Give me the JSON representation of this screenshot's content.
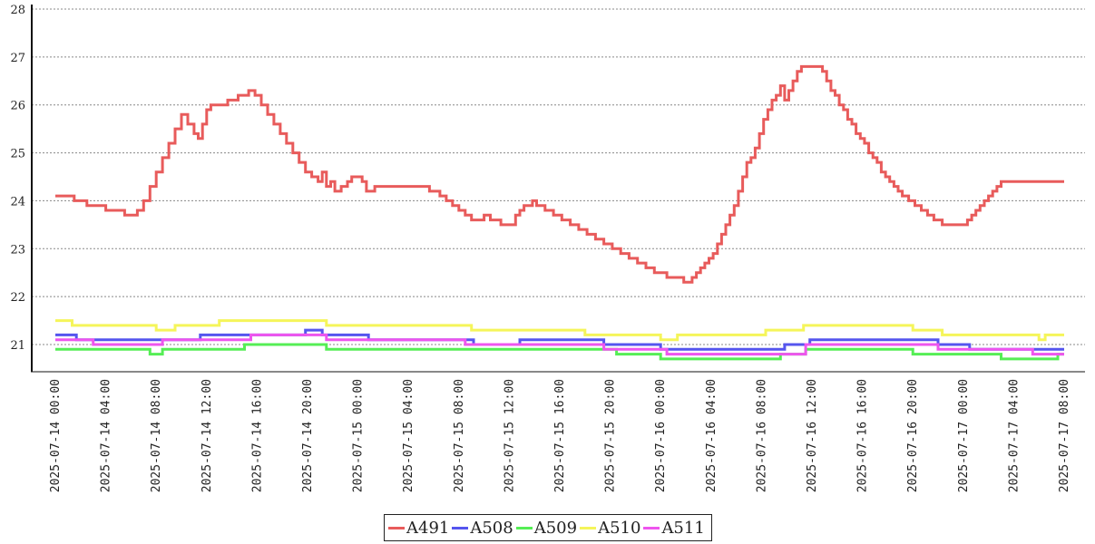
{
  "chart_data": {
    "type": "line",
    "step": true,
    "grid": "horizontal-dashed",
    "legend_position": "bottom-center",
    "ylim": [
      21,
      28
    ],
    "yticks": [
      21,
      22,
      23,
      24,
      25,
      26,
      27,
      28
    ],
    "x_range": [
      "2025-07-14 00:00",
      "2025-07-17 08:00"
    ],
    "x_tick_labels": [
      "2025-07-14  00:00",
      "2025-07-14  04:00",
      "2025-07-14  08:00",
      "2025-07-14  12:00",
      "2025-07-14  16:00",
      "2025-07-14  20:00",
      "2025-07-15  00:00",
      "2025-07-15  04:00",
      "2025-07-15  08:00",
      "2025-07-15  12:00",
      "2025-07-15  16:00",
      "2025-07-15  20:00",
      "2025-07-16  00:00",
      "2025-07-16  04:00",
      "2025-07-16  08:00",
      "2025-07-16  12:00",
      "2025-07-16  16:00",
      "2025-07-16  20:00",
      "2025-07-17  00:00",
      "2025-07-17  04:00",
      "2025-07-17  08:00"
    ],
    "series": [
      {
        "name": "A491",
        "color": "#e85b5b",
        "points": [
          [
            "2025-07-14 00:00",
            24.1
          ],
          [
            "2025-07-14 01:30",
            24.0
          ],
          [
            "2025-07-14 02:30",
            23.9
          ],
          [
            "2025-07-14 04:00",
            23.8
          ],
          [
            "2025-07-14 05:30",
            23.7
          ],
          [
            "2025-07-14 06:30",
            23.8
          ],
          [
            "2025-07-14 07:00",
            24.0
          ],
          [
            "2025-07-14 07:30",
            24.3
          ],
          [
            "2025-07-14 08:00",
            24.6
          ],
          [
            "2025-07-14 08:30",
            24.9
          ],
          [
            "2025-07-14 09:00",
            25.2
          ],
          [
            "2025-07-14 09:30",
            25.5
          ],
          [
            "2025-07-14 10:00",
            25.8
          ],
          [
            "2025-07-14 10:30",
            25.6
          ],
          [
            "2025-07-14 11:00",
            25.4
          ],
          [
            "2025-07-14 11:20",
            25.3
          ],
          [
            "2025-07-14 11:40",
            25.6
          ],
          [
            "2025-07-14 12:00",
            25.9
          ],
          [
            "2025-07-14 12:20",
            26.0
          ],
          [
            "2025-07-14 13:40",
            26.1
          ],
          [
            "2025-07-14 14:30",
            26.2
          ],
          [
            "2025-07-14 15:20",
            26.3
          ],
          [
            "2025-07-14 15:50",
            26.2
          ],
          [
            "2025-07-14 16:20",
            26.0
          ],
          [
            "2025-07-14 16:50",
            25.8
          ],
          [
            "2025-07-14 17:20",
            25.6
          ],
          [
            "2025-07-14 17:50",
            25.4
          ],
          [
            "2025-07-14 18:20",
            25.2
          ],
          [
            "2025-07-14 18:50",
            25.0
          ],
          [
            "2025-07-14 19:20",
            24.8
          ],
          [
            "2025-07-14 19:50",
            24.6
          ],
          [
            "2025-07-14 20:20",
            24.5
          ],
          [
            "2025-07-14 20:50",
            24.4
          ],
          [
            "2025-07-14 21:10",
            24.6
          ],
          [
            "2025-07-14 21:30",
            24.3
          ],
          [
            "2025-07-14 21:50",
            24.4
          ],
          [
            "2025-07-14 22:10",
            24.2
          ],
          [
            "2025-07-14 22:40",
            24.3
          ],
          [
            "2025-07-14 23:10",
            24.4
          ],
          [
            "2025-07-14 23:30",
            24.5
          ],
          [
            "2025-07-15 00:20",
            24.4
          ],
          [
            "2025-07-15 00:40",
            24.2
          ],
          [
            "2025-07-15 01:20",
            24.3
          ],
          [
            "2025-07-15 05:40",
            24.2
          ],
          [
            "2025-07-15 06:30",
            24.1
          ],
          [
            "2025-07-15 07:00",
            24.0
          ],
          [
            "2025-07-15 07:30",
            23.9
          ],
          [
            "2025-07-15 08:00",
            23.8
          ],
          [
            "2025-07-15 08:30",
            23.7
          ],
          [
            "2025-07-15 09:00",
            23.6
          ],
          [
            "2025-07-15 10:00",
            23.7
          ],
          [
            "2025-07-15 10:30",
            23.6
          ],
          [
            "2025-07-15 11:20",
            23.5
          ],
          [
            "2025-07-15 12:30",
            23.7
          ],
          [
            "2025-07-15 12:50",
            23.8
          ],
          [
            "2025-07-15 13:10",
            23.9
          ],
          [
            "2025-07-15 13:50",
            24.0
          ],
          [
            "2025-07-15 14:10",
            23.9
          ],
          [
            "2025-07-15 14:50",
            23.8
          ],
          [
            "2025-07-15 15:30",
            23.7
          ],
          [
            "2025-07-15 16:10",
            23.6
          ],
          [
            "2025-07-15 16:50",
            23.5
          ],
          [
            "2025-07-15 17:30",
            23.4
          ],
          [
            "2025-07-15 18:10",
            23.3
          ],
          [
            "2025-07-15 18:50",
            23.2
          ],
          [
            "2025-07-15 19:30",
            23.1
          ],
          [
            "2025-07-15 20:10",
            23.0
          ],
          [
            "2025-07-15 20:50",
            22.9
          ],
          [
            "2025-07-15 21:30",
            22.8
          ],
          [
            "2025-07-15 22:10",
            22.7
          ],
          [
            "2025-07-15 22:50",
            22.6
          ],
          [
            "2025-07-15 23:30",
            22.5
          ],
          [
            "2025-07-16 00:30",
            22.4
          ],
          [
            "2025-07-16 01:50",
            22.3
          ],
          [
            "2025-07-16 02:30",
            22.4
          ],
          [
            "2025-07-16 02:50",
            22.5
          ],
          [
            "2025-07-16 03:10",
            22.6
          ],
          [
            "2025-07-16 03:30",
            22.7
          ],
          [
            "2025-07-16 03:50",
            22.8
          ],
          [
            "2025-07-16 04:10",
            22.9
          ],
          [
            "2025-07-16 04:30",
            23.1
          ],
          [
            "2025-07-16 04:50",
            23.3
          ],
          [
            "2025-07-16 05:10",
            23.5
          ],
          [
            "2025-07-16 05:30",
            23.7
          ],
          [
            "2025-07-16 05:50",
            23.9
          ],
          [
            "2025-07-16 06:10",
            24.2
          ],
          [
            "2025-07-16 06:30",
            24.5
          ],
          [
            "2025-07-16 06:50",
            24.8
          ],
          [
            "2025-07-16 07:10",
            24.9
          ],
          [
            "2025-07-16 07:30",
            25.1
          ],
          [
            "2025-07-16 07:50",
            25.4
          ],
          [
            "2025-07-16 08:10",
            25.7
          ],
          [
            "2025-07-16 08:30",
            25.9
          ],
          [
            "2025-07-16 08:50",
            26.1
          ],
          [
            "2025-07-16 09:10",
            26.2
          ],
          [
            "2025-07-16 09:30",
            26.4
          ],
          [
            "2025-07-16 09:50",
            26.1
          ],
          [
            "2025-07-16 10:10",
            26.3
          ],
          [
            "2025-07-16 10:30",
            26.5
          ],
          [
            "2025-07-16 10:50",
            26.7
          ],
          [
            "2025-07-16 11:10",
            26.8
          ],
          [
            "2025-07-16 12:50",
            26.7
          ],
          [
            "2025-07-16 13:10",
            26.5
          ],
          [
            "2025-07-16 13:30",
            26.3
          ],
          [
            "2025-07-16 13:50",
            26.2
          ],
          [
            "2025-07-16 14:10",
            26.0
          ],
          [
            "2025-07-16 14:30",
            25.9
          ],
          [
            "2025-07-16 14:50",
            25.7
          ],
          [
            "2025-07-16 15:10",
            25.6
          ],
          [
            "2025-07-16 15:30",
            25.4
          ],
          [
            "2025-07-16 15:50",
            25.3
          ],
          [
            "2025-07-16 16:10",
            25.2
          ],
          [
            "2025-07-16 16:30",
            25.0
          ],
          [
            "2025-07-16 16:50",
            24.9
          ],
          [
            "2025-07-16 17:10",
            24.8
          ],
          [
            "2025-07-16 17:30",
            24.6
          ],
          [
            "2025-07-16 17:50",
            24.5
          ],
          [
            "2025-07-16 18:10",
            24.4
          ],
          [
            "2025-07-16 18:30",
            24.3
          ],
          [
            "2025-07-16 18:50",
            24.2
          ],
          [
            "2025-07-16 19:10",
            24.1
          ],
          [
            "2025-07-16 19:40",
            24.0
          ],
          [
            "2025-07-16 20:10",
            23.9
          ],
          [
            "2025-07-16 20:40",
            23.8
          ],
          [
            "2025-07-16 21:10",
            23.7
          ],
          [
            "2025-07-16 21:40",
            23.6
          ],
          [
            "2025-07-16 22:20",
            23.5
          ],
          [
            "2025-07-17 00:20",
            23.6
          ],
          [
            "2025-07-17 00:40",
            23.7
          ],
          [
            "2025-07-17 01:00",
            23.8
          ],
          [
            "2025-07-17 01:20",
            23.9
          ],
          [
            "2025-07-17 01:40",
            24.0
          ],
          [
            "2025-07-17 02:00",
            24.1
          ],
          [
            "2025-07-17 02:20",
            24.2
          ],
          [
            "2025-07-17 02:40",
            24.3
          ],
          [
            "2025-07-17 03:00",
            24.4
          ],
          [
            "2025-07-17 08:00",
            24.4
          ]
        ]
      },
      {
        "name": "A508",
        "color": "#5555ee",
        "points": [
          [
            "2025-07-14 00:00",
            21.2
          ],
          [
            "2025-07-14 01:40",
            21.1
          ],
          [
            "2025-07-14 11:30",
            21.2
          ],
          [
            "2025-07-14 19:50",
            21.3
          ],
          [
            "2025-07-14 21:10",
            21.2
          ],
          [
            "2025-07-15 00:50",
            21.1
          ],
          [
            "2025-07-15 09:10",
            21.0
          ],
          [
            "2025-07-15 12:50",
            21.1
          ],
          [
            "2025-07-15 19:30",
            21.0
          ],
          [
            "2025-07-16 00:00",
            20.9
          ],
          [
            "2025-07-16 09:50",
            21.0
          ],
          [
            "2025-07-16 11:50",
            21.1
          ],
          [
            "2025-07-16 22:00",
            21.0
          ],
          [
            "2025-07-17 00:30",
            20.9
          ],
          [
            "2025-07-17 08:00",
            20.9
          ]
        ]
      },
      {
        "name": "A509",
        "color": "#55ee55",
        "points": [
          [
            "2025-07-14 00:00",
            20.9
          ],
          [
            "2025-07-14 07:30",
            20.8
          ],
          [
            "2025-07-14 08:30",
            20.9
          ],
          [
            "2025-07-14 15:00",
            21.0
          ],
          [
            "2025-07-14 21:30",
            20.9
          ],
          [
            "2025-07-15 20:30",
            20.8
          ],
          [
            "2025-07-16 00:00",
            20.7
          ],
          [
            "2025-07-16 09:30",
            20.8
          ],
          [
            "2025-07-16 11:30",
            20.9
          ],
          [
            "2025-07-16 20:00",
            20.8
          ],
          [
            "2025-07-17 00:30",
            20.8
          ],
          [
            "2025-07-17 03:00",
            20.7
          ],
          [
            "2025-07-17 07:30",
            20.8
          ],
          [
            "2025-07-17 08:00",
            20.8
          ]
        ]
      },
      {
        "name": "A510",
        "color": "#f5f55a",
        "points": [
          [
            "2025-07-14 00:00",
            21.5
          ],
          [
            "2025-07-14 01:20",
            21.4
          ],
          [
            "2025-07-14 08:00",
            21.3
          ],
          [
            "2025-07-14 09:30",
            21.4
          ],
          [
            "2025-07-14 13:00",
            21.5
          ],
          [
            "2025-07-14 21:30",
            21.4
          ],
          [
            "2025-07-15 09:00",
            21.3
          ],
          [
            "2025-07-15 18:00",
            21.2
          ],
          [
            "2025-07-16 00:00",
            21.1
          ],
          [
            "2025-07-16 01:20",
            21.2
          ],
          [
            "2025-07-16 08:20",
            21.3
          ],
          [
            "2025-07-16 11:20",
            21.4
          ],
          [
            "2025-07-16 20:00",
            21.3
          ],
          [
            "2025-07-16 22:20",
            21.2
          ],
          [
            "2025-07-17 06:00",
            21.1
          ],
          [
            "2025-07-17 06:30",
            21.2
          ],
          [
            "2025-07-17 08:00",
            21.2
          ]
        ]
      },
      {
        "name": "A511",
        "color": "#ee55ee",
        "points": [
          [
            "2025-07-14 00:00",
            21.1
          ],
          [
            "2025-07-14 03:00",
            21.0
          ],
          [
            "2025-07-14 05:30",
            21.0
          ],
          [
            "2025-07-14 08:30",
            21.1
          ],
          [
            "2025-07-14 15:30",
            21.2
          ],
          [
            "2025-07-14 21:30",
            21.1
          ],
          [
            "2025-07-15 08:30",
            21.0
          ],
          [
            "2025-07-15 19:30",
            20.9
          ],
          [
            "2025-07-16 00:30",
            20.8
          ],
          [
            "2025-07-16 11:30",
            21.0
          ],
          [
            "2025-07-16 18:30",
            21.0
          ],
          [
            "2025-07-16 22:00",
            20.9
          ],
          [
            "2025-07-17 05:30",
            20.8
          ],
          [
            "2025-07-17 08:00",
            20.8
          ]
        ]
      }
    ]
  }
}
